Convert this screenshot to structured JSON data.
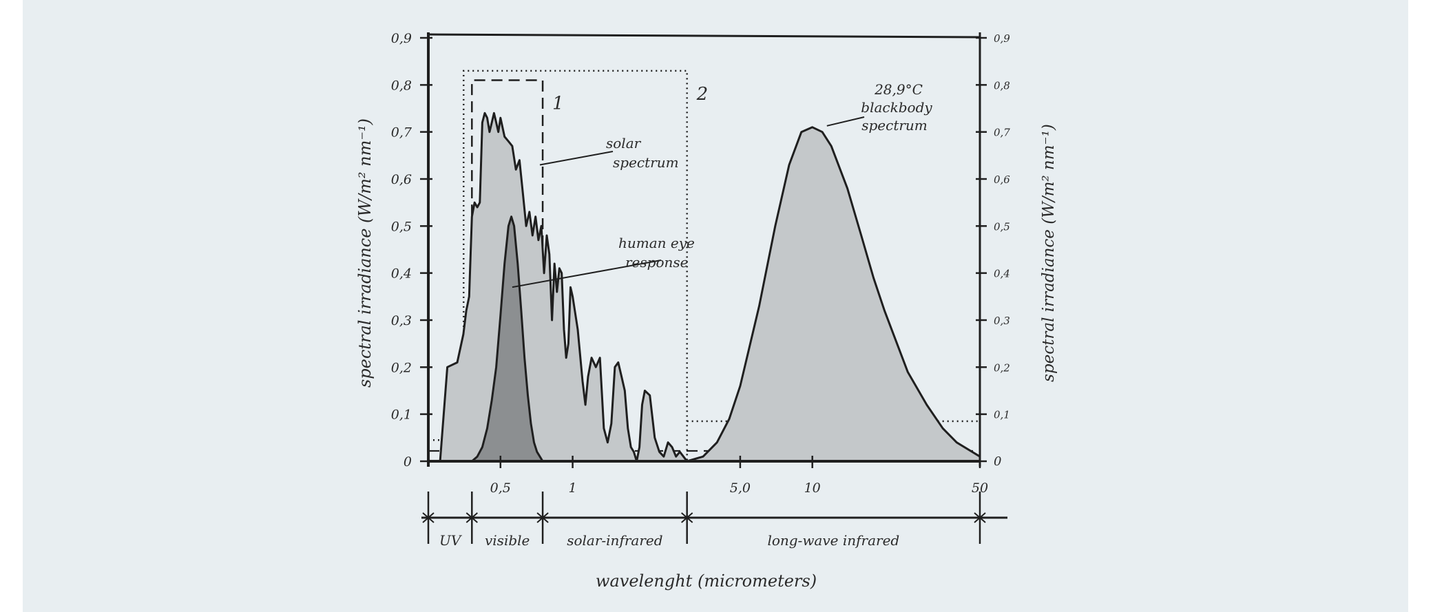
{
  "chart_data": {
    "type": "area",
    "title": "",
    "xlabel": "wavelenght (micrometers)",
    "ylabel_left": "spectral irradiance (W/m² nm⁻¹)",
    "ylabel_right": "spectral irradiance (W/m² nm⁻¹)",
    "ylim": [
      0,
      0.9
    ],
    "y_ticks_left": [
      "0",
      "0,1",
      "0,2",
      "0,3",
      "0,4",
      "0,5",
      "0,6",
      "0,7",
      "0,8",
      "0,9"
    ],
    "y_ticks_right": [
      "0",
      "0,1",
      "0,2",
      "0,3",
      "0,4",
      "0,5",
      "0,6",
      "0,7",
      "0,8",
      "0,9"
    ],
    "x_scale": "log",
    "xlim": [
      0.25,
      50
    ],
    "x_ticks": [
      {
        "value": 0.5,
        "label": "0,5"
      },
      {
        "value": 1,
        "label": "1"
      },
      {
        "value": 5,
        "label": "5,0"
      },
      {
        "value": 10,
        "label": "10"
      },
      {
        "value": 50,
        "label": "50"
      }
    ],
    "bands": [
      {
        "label": "UV",
        "from": 0.25,
        "to": 0.38
      },
      {
        "label": "visible",
        "from": 0.38,
        "to": 0.75
      },
      {
        "label": "solar-infrared",
        "from": 0.75,
        "to": 3
      },
      {
        "label": "long-wave infrared",
        "from": 3,
        "to": 50
      }
    ],
    "windows": [
      {
        "label": "1",
        "style": "dashed",
        "from": 0.38,
        "to": 0.75,
        "height": 0.81
      },
      {
        "label": "2",
        "style": "dotted",
        "from": 0.37,
        "to": 3,
        "height": 0.83
      }
    ],
    "series": [
      {
        "name": "solar spectrum",
        "x": [
          0.28,
          0.3,
          0.33,
          0.35,
          0.36,
          0.37,
          0.38,
          0.39,
          0.4,
          0.41,
          0.42,
          0.43,
          0.44,
          0.45,
          0.46,
          0.47,
          0.48,
          0.49,
          0.5,
          0.52,
          0.54,
          0.56,
          0.58,
          0.6,
          0.62,
          0.64,
          0.66,
          0.68,
          0.7,
          0.72,
          0.74,
          0.76,
          0.78,
          0.8,
          0.82,
          0.84,
          0.86,
          0.88,
          0.9,
          0.92,
          0.94,
          0.96,
          0.98,
          1.0,
          1.05,
          1.1,
          1.13,
          1.16,
          1.2,
          1.25,
          1.3,
          1.35,
          1.4,
          1.45,
          1.5,
          1.55,
          1.6,
          1.65,
          1.7,
          1.75,
          1.8,
          1.85,
          1.9,
          1.95,
          2.0,
          2.1,
          2.2,
          2.3,
          2.4,
          2.5,
          2.6,
          2.7,
          2.8,
          2.9,
          3.0
        ],
        "values": [
          0.0,
          0.2,
          0.21,
          0.27,
          0.32,
          0.35,
          0.52,
          0.55,
          0.54,
          0.55,
          0.72,
          0.74,
          0.73,
          0.7,
          0.72,
          0.74,
          0.72,
          0.7,
          0.73,
          0.69,
          0.68,
          0.67,
          0.62,
          0.64,
          0.57,
          0.5,
          0.53,
          0.48,
          0.52,
          0.47,
          0.5,
          0.4,
          0.48,
          0.44,
          0.3,
          0.42,
          0.36,
          0.41,
          0.4,
          0.28,
          0.22,
          0.25,
          0.37,
          0.35,
          0.28,
          0.17,
          0.12,
          0.18,
          0.22,
          0.2,
          0.22,
          0.07,
          0.04,
          0.08,
          0.2,
          0.21,
          0.18,
          0.15,
          0.07,
          0.03,
          0.02,
          0.0,
          0.03,
          0.12,
          0.15,
          0.14,
          0.05,
          0.02,
          0.01,
          0.04,
          0.03,
          0.01,
          0.02,
          0.01,
          0.0
        ]
      },
      {
        "name": "human eye response",
        "x": [
          0.38,
          0.4,
          0.42,
          0.44,
          0.46,
          0.48,
          0.5,
          0.52,
          0.54,
          0.555,
          0.57,
          0.59,
          0.61,
          0.63,
          0.65,
          0.67,
          0.69,
          0.71,
          0.73,
          0.75
        ],
        "values": [
          0.0,
          0.01,
          0.03,
          0.07,
          0.13,
          0.2,
          0.31,
          0.42,
          0.5,
          0.52,
          0.5,
          0.42,
          0.32,
          0.22,
          0.14,
          0.08,
          0.04,
          0.02,
          0.01,
          0.0
        ]
      },
      {
        "name": "28,9°C blackbody spectrum",
        "x": [
          3.0,
          3.5,
          4.0,
          4.5,
          5.0,
          6.0,
          7.0,
          8.0,
          9.0,
          10.0,
          11.0,
          12.0,
          14.0,
          16.0,
          18.0,
          20.0,
          25.0,
          30.0,
          35.0,
          40.0,
          50.0
        ],
        "values": [
          0.0,
          0.01,
          0.04,
          0.09,
          0.16,
          0.33,
          0.5,
          0.63,
          0.7,
          0.71,
          0.7,
          0.67,
          0.58,
          0.48,
          0.39,
          0.32,
          0.19,
          0.12,
          0.07,
          0.04,
          0.01
        ]
      }
    ],
    "annotations": [
      {
        "text": "solar spectrum",
        "target": "solar spectrum"
      },
      {
        "text": "human eye response",
        "target": "human eye response"
      },
      {
        "text": "28,9°C blackbody spectrum",
        "target": "28,9°C blackbody spectrum"
      }
    ],
    "colors": {
      "solar_fill": "#c4c8ca",
      "eye_fill": "#8c8f91",
      "blackbody_fill": "#c4c8ca",
      "ink": "#1f1f1f",
      "panel": "#e8eef1"
    }
  }
}
